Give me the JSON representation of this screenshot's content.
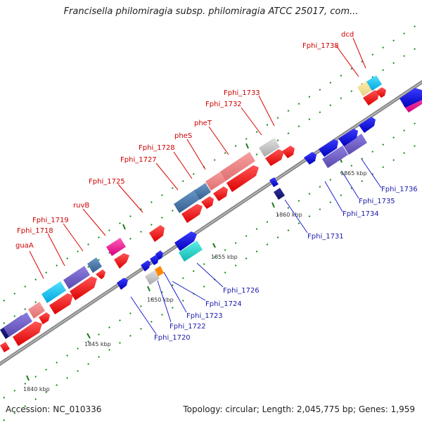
{
  "header": {
    "title": "Francisella philomiragia subsp. philomiragia ATCC 25017, com..."
  },
  "footer": {
    "accession": "Accession: NC_010336",
    "summary": "Topology: circular; Length: 2,045,775 bp; Genes: 1,959"
  },
  "scale_labels": [
    "1840 kbp",
    "1845 kbp",
    "1850 kbp",
    "1855 kbp",
    "1860 kbp",
    "1865 kbp"
  ],
  "gene_labels_top": [
    "guaA",
    "Fphi_1718",
    "Fphi_1719",
    "ruvB",
    "Fphi_1725",
    "Fphi_1727",
    "Fphi_1728",
    "pheS",
    "pheT",
    "Fphi_1732",
    "Fphi_1733",
    "Fphi_1738",
    "dcd"
  ],
  "gene_labels_bottom": [
    "Fphi_1720",
    "Fphi_1722",
    "Fphi_1723",
    "Fphi_1724",
    "Fphi_1726",
    "Fphi_1731",
    "Fphi_1734",
    "Fphi_1735",
    "Fphi_1736"
  ],
  "colors": {
    "forward_strand": "#ff0000",
    "reverse_strand": "#1010e0",
    "axis": "#888888",
    "label_top": "#cc0000",
    "label_bottom": "#1a1aaa"
  }
}
